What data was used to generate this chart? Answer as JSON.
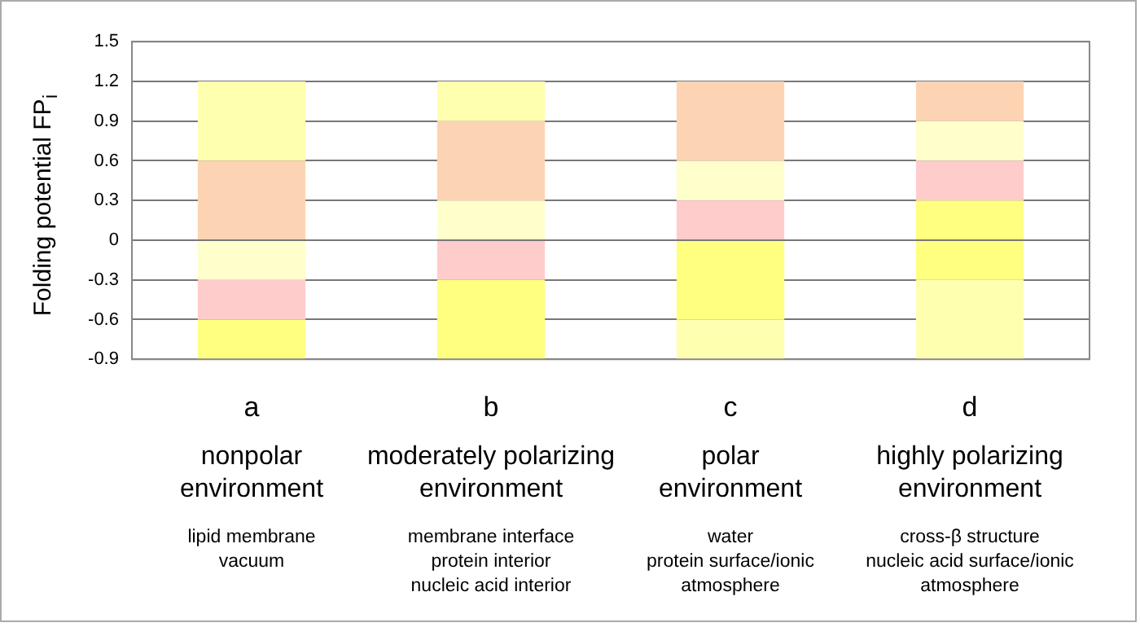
{
  "chart_data": {
    "type": "bar",
    "stacked": true,
    "ylabel": "Folding potential  FP$_{i}$",
    "categories": [
      "a",
      "b",
      "c",
      "d"
    ],
    "series": [
      {
        "color": "#ffff80",
        "values": [
          null,
          null,
          null,
          0.3
        ]
      },
      {
        "color": "#ffcccc",
        "values": [
          null,
          null,
          0.3,
          0.3
        ]
      },
      {
        "color": "#ffffcc",
        "values": [
          null,
          0.3,
          0.3,
          0.3
        ]
      },
      {
        "color": "#fcd4b4",
        "values": [
          0.6,
          0.6,
          0.6,
          0.3
        ]
      },
      {
        "color": "#ffffb0",
        "values": [
          0.6,
          0.3,
          null,
          null
        ]
      },
      {
        "color": "#ffffcc",
        "values": [
          -0.3,
          null,
          null,
          null
        ]
      },
      {
        "color": "#ffcccc",
        "values": [
          -0.3,
          -0.3,
          null,
          null
        ]
      },
      {
        "color": "#ffff80",
        "values": [
          -0.3,
          -0.6,
          -0.6,
          -0.3
        ]
      },
      {
        "color": "#ffffb0",
        "values": [
          null,
          null,
          -0.3,
          -0.6
        ]
      }
    ],
    "ylim": [
      -0.9,
      1.5
    ],
    "yticks": [
      -0.9,
      -0.6,
      -0.3,
      0,
      0.3,
      0.6,
      0.9,
      1.2,
      1.5
    ],
    "grid": "y",
    "legend": false,
    "annotations": [
      "nonpolar\nenvironment",
      "lipid membrane\nvacuum",
      "moderately polarizing\nenvironment",
      "membrane interface\nprotein interior\nnucleic acid interior",
      "polar\nenvironment",
      "water\nprotein surface/ionic\natmosphere",
      "highly polarizing\nenvironment",
      "cross-β structure\nnucleic acid surface/ionic\natmosphere"
    ]
  }
}
